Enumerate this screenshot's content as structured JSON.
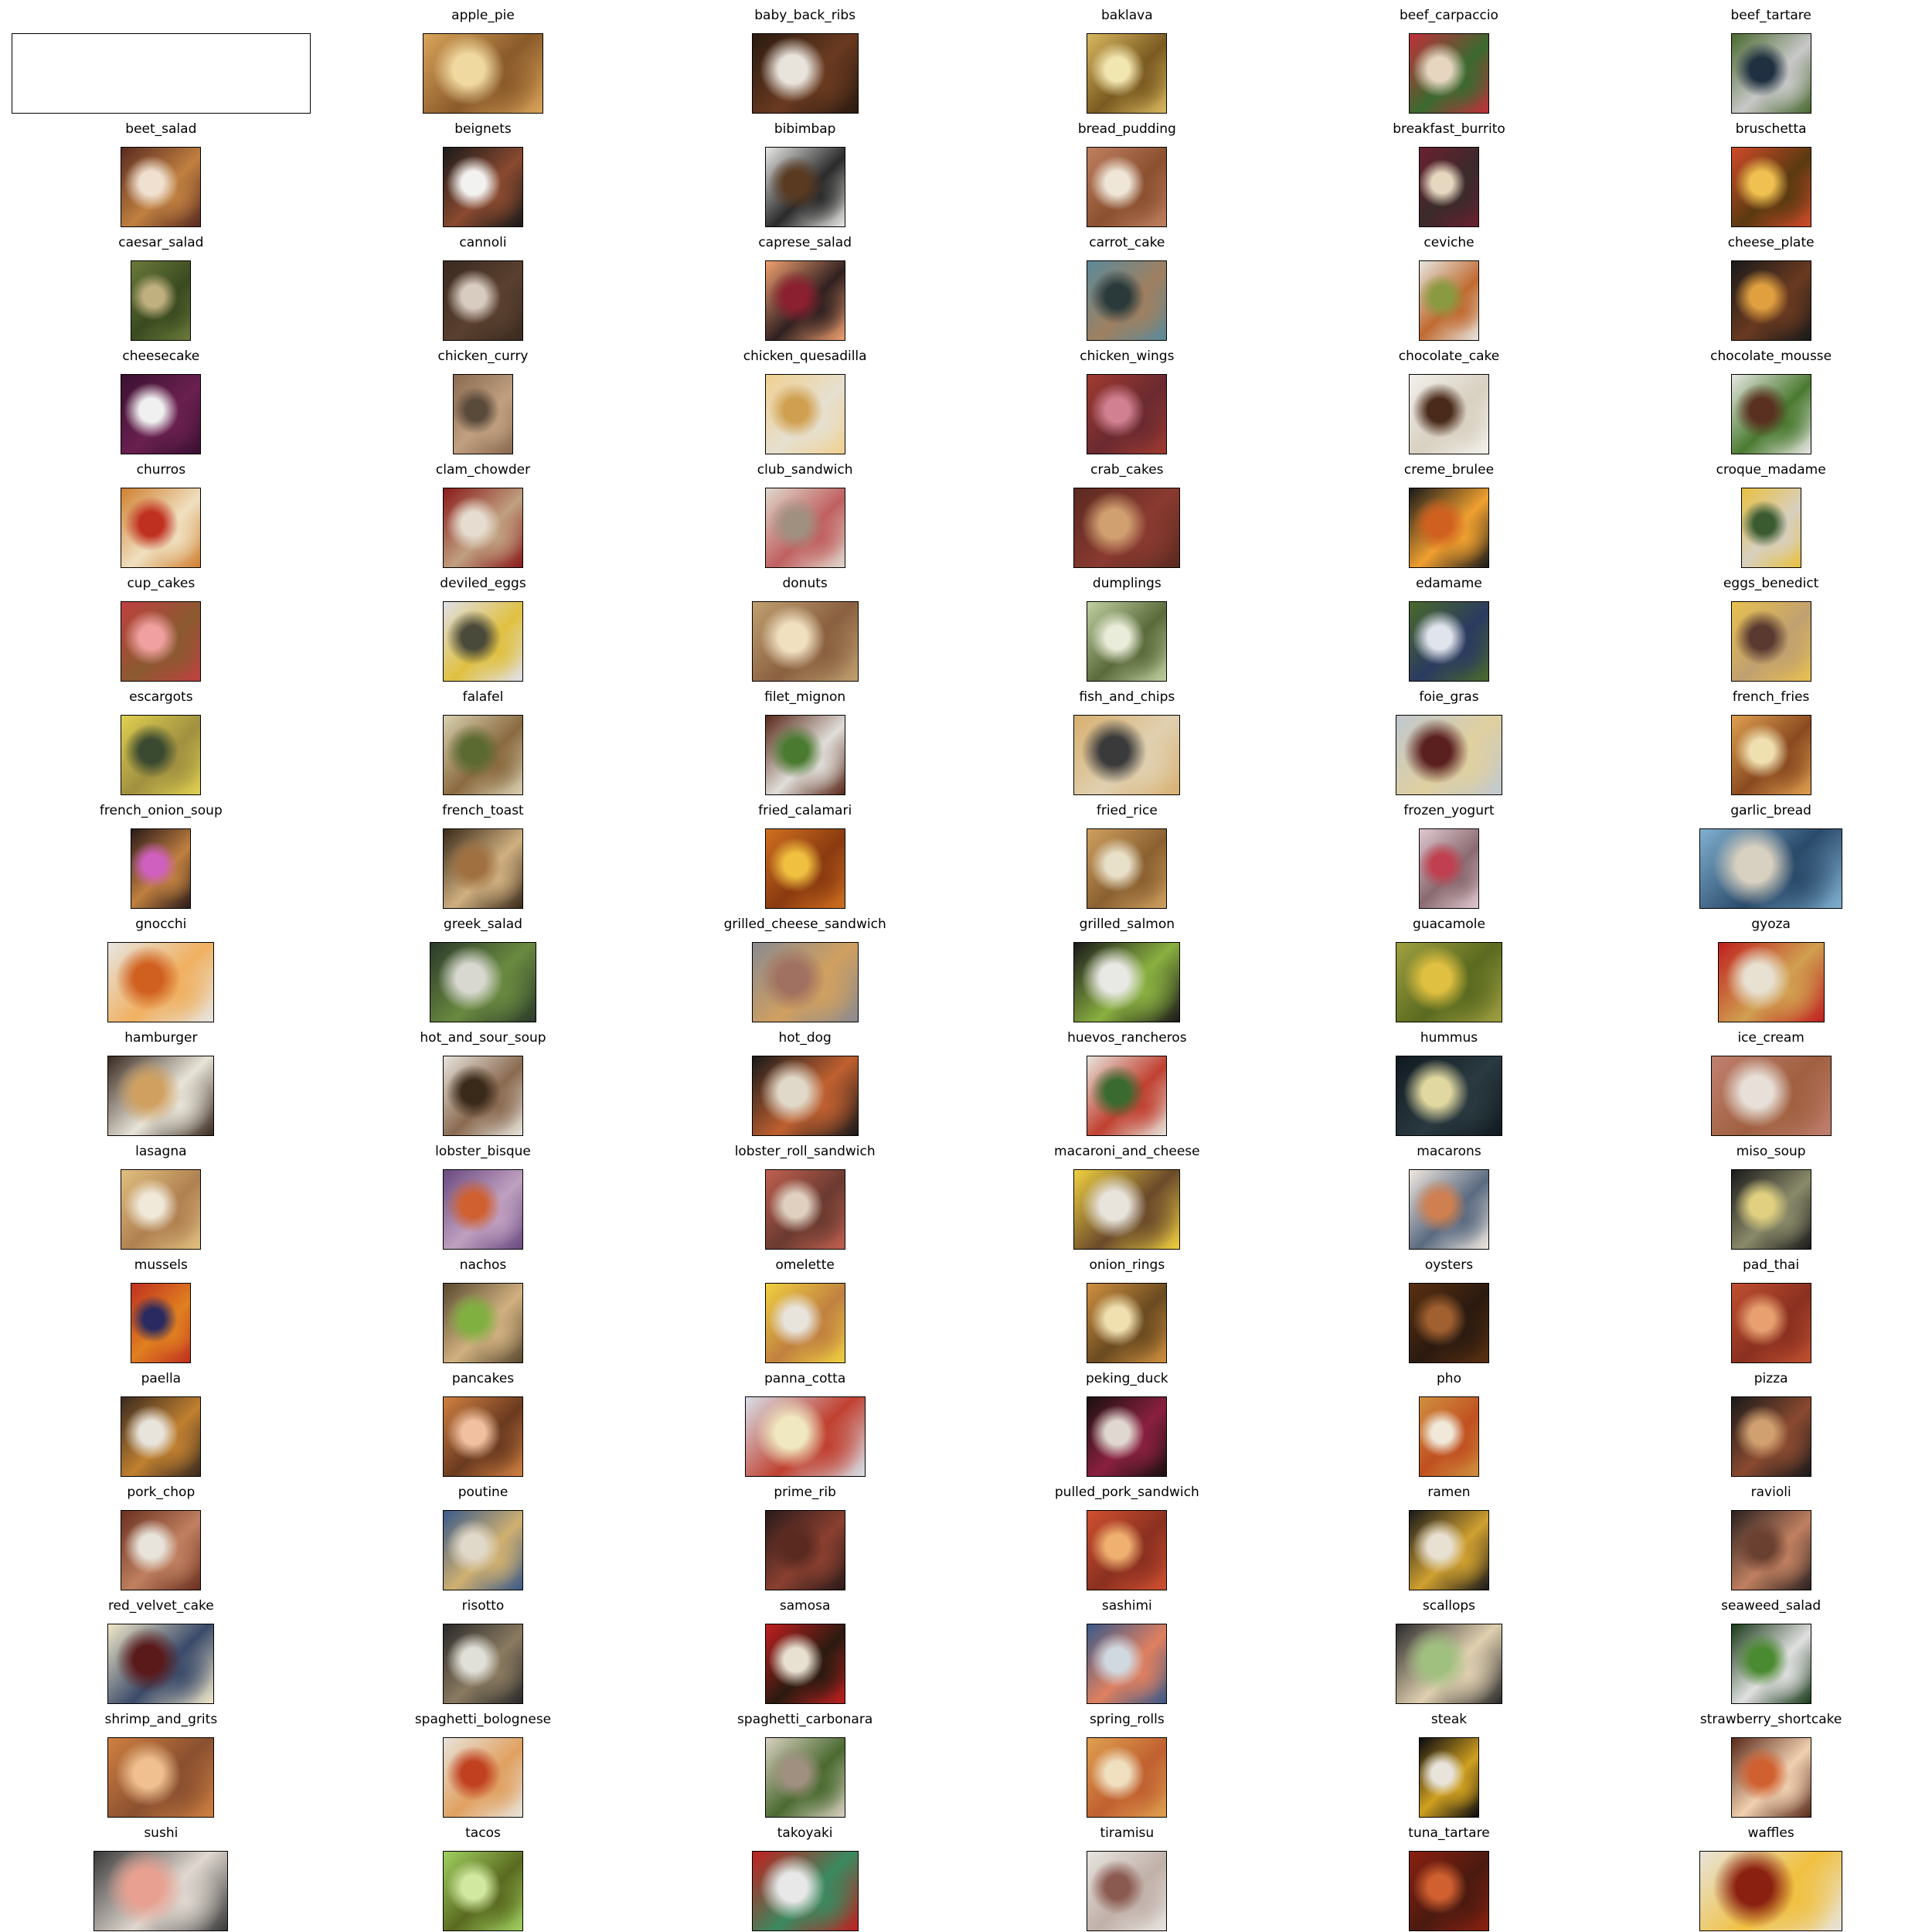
{
  "grid": {
    "columns": 6,
    "rows": 17,
    "items": [
      {
        "label": "",
        "thumb": "blank-white",
        "aspect": 4.4,
        "colors": [
          "#ffffff",
          "#ffffff",
          "#ffffff"
        ]
      },
      {
        "label": "apple_pie",
        "thumb": "food-photo",
        "aspect": 1.5,
        "colors": [
          "#d9a45a",
          "#f0d9a0",
          "#8a5a2a"
        ]
      },
      {
        "label": "baby_back_ribs",
        "thumb": "food-photo",
        "aspect": 1.33,
        "colors": [
          "#2a1a10",
          "#e8e4dc",
          "#6a3a20"
        ]
      },
      {
        "label": "baklava",
        "thumb": "food-photo",
        "aspect": 1.0,
        "colors": [
          "#d9b860",
          "#f2e6b0",
          "#7a5a20"
        ]
      },
      {
        "label": "beef_carpaccio",
        "thumb": "food-photo",
        "aspect": 1.0,
        "colors": [
          "#c0303a",
          "#e6d6c0",
          "#3a6a30"
        ]
      },
      {
        "label": "beef_tartare",
        "thumb": "food-photo",
        "aspect": 1.0,
        "colors": [
          "#4a6a30",
          "#203040",
          "#c8c8c8"
        ]
      },
      {
        "label": "beet_salad",
        "thumb": "food-photo",
        "aspect": 1.0,
        "colors": [
          "#5a2a20",
          "#f0e0d0",
          "#c08040"
        ]
      },
      {
        "label": "beignets",
        "thumb": "food-photo",
        "aspect": 1.0,
        "colors": [
          "#1a1a1a",
          "#f2f2f0",
          "#8a4a30"
        ]
      },
      {
        "label": "bibimbap",
        "thumb": "food-photo",
        "aspect": 1.0,
        "colors": [
          "#e8e8e6",
          "#5a3a20",
          "#2a2a2a"
        ]
      },
      {
        "label": "bread_pudding",
        "thumb": "food-photo",
        "aspect": 1.0,
        "colors": [
          "#c08060",
          "#f0e6d8",
          "#8a5030"
        ]
      },
      {
        "label": "breakfast_burrito",
        "thumb": "food-photo",
        "aspect": 0.75,
        "colors": [
          "#6a2030",
          "#e6d8c0",
          "#3a2a2a"
        ]
      },
      {
        "label": "bruschetta",
        "thumb": "food-photo",
        "aspect": 1.0,
        "colors": [
          "#d04a2a",
          "#f0c050",
          "#5a3a10"
        ]
      },
      {
        "label": "caesar_salad",
        "thumb": "food-photo",
        "aspect": 0.75,
        "colors": [
          "#6a7a3a",
          "#c0b080",
          "#3a4a20"
        ]
      },
      {
        "label": "cannoli",
        "thumb": "food-photo",
        "aspect": 1.0,
        "colors": [
          "#3a2a20",
          "#d8ccc0",
          "#5a4030"
        ]
      },
      {
        "label": "caprese_salad",
        "thumb": "food-photo",
        "aspect": 1.0,
        "colors": [
          "#f0a070",
          "#8a2030",
          "#302020"
        ]
      },
      {
        "label": "carrot_cake",
        "thumb": "food-photo",
        "aspect": 1.0,
        "colors": [
          "#5a8a9a",
          "#2a3a3a",
          "#a08060"
        ]
      },
      {
        "label": "ceviche",
        "thumb": "food-photo",
        "aspect": 0.75,
        "colors": [
          "#e6e6e0",
          "#8a9a40",
          "#c06a30"
        ]
      },
      {
        "label": "cheese_plate",
        "thumb": "food-photo",
        "aspect": 1.0,
        "colors": [
          "#1a1a1a",
          "#e0a040",
          "#6a3a20"
        ]
      },
      {
        "label": "cheesecake",
        "thumb": "food-photo",
        "aspect": 1.0,
        "colors": [
          "#3a1030",
          "#f0f0f0",
          "#6a2050"
        ]
      },
      {
        "label": "chicken_curry",
        "thumb": "food-photo",
        "aspect": 0.75,
        "colors": [
          "#8a6a50",
          "#5a4a3a",
          "#c0a080"
        ]
      },
      {
        "label": "chicken_quesadilla",
        "thumb": "food-photo",
        "aspect": 1.0,
        "colors": [
          "#f0d090",
          "#d0a050",
          "#e6e0d0"
        ]
      },
      {
        "label": "chicken_wings",
        "thumb": "food-photo",
        "aspect": 1.0,
        "colors": [
          "#a03a30",
          "#d08090",
          "#6a2a30"
        ]
      },
      {
        "label": "chocolate_cake",
        "thumb": "food-photo",
        "aspect": 1.0,
        "colors": [
          "#f2f0ec",
          "#4a2a1a",
          "#d8d0c0"
        ]
      },
      {
        "label": "chocolate_mousse",
        "thumb": "food-photo",
        "aspect": 1.0,
        "colors": [
          "#e8e8e4",
          "#5a3020",
          "#4a7a30"
        ]
      },
      {
        "label": "churros",
        "thumb": "food-photo",
        "aspect": 1.0,
        "colors": [
          "#d08030",
          "#c03020",
          "#f0e0c0"
        ]
      },
      {
        "label": "clam_chowder",
        "thumb": "food-photo",
        "aspect": 1.0,
        "colors": [
          "#8a1a1a",
          "#e6ddd0",
          "#c0a080"
        ]
      },
      {
        "label": "club_sandwich",
        "thumb": "food-photo",
        "aspect": 1.0,
        "colors": [
          "#e0d8cc",
          "#a09080",
          "#c06060"
        ]
      },
      {
        "label": "crab_cakes",
        "thumb": "food-photo",
        "aspect": 1.33,
        "colors": [
          "#5a2a20",
          "#d0a070",
          "#8a3a30"
        ]
      },
      {
        "label": "creme_brulee",
        "thumb": "food-photo",
        "aspect": 1.0,
        "colors": [
          "#1a1a1a",
          "#d06020",
          "#f0a030"
        ]
      },
      {
        "label": "croque_madame",
        "thumb": "food-photo",
        "aspect": 0.75,
        "colors": [
          "#e8c040",
          "#3a5a30",
          "#d8d0c0"
        ]
      },
      {
        "label": "cup_cakes",
        "thumb": "food-photo",
        "aspect": 1.0,
        "colors": [
          "#c04040",
          "#f0a0a0",
          "#8a5a30"
        ]
      },
      {
        "label": "deviled_eggs",
        "thumb": "food-photo",
        "aspect": 1.0,
        "colors": [
          "#e0e0e8",
          "#4a4a3a",
          "#e0c040"
        ]
      },
      {
        "label": "donuts",
        "thumb": "food-photo",
        "aspect": 1.33,
        "colors": [
          "#c0a070",
          "#f0e0c0",
          "#8a6040"
        ]
      },
      {
        "label": "dumplings",
        "thumb": "food-photo",
        "aspect": 1.0,
        "colors": [
          "#c0d0a0",
          "#e8ecd8",
          "#5a6a3a"
        ]
      },
      {
        "label": "edamame",
        "thumb": "food-photo",
        "aspect": 1.0,
        "colors": [
          "#4a6a2a",
          "#e0e4ec",
          "#2a3a60"
        ]
      },
      {
        "label": "eggs_benedict",
        "thumb": "food-photo",
        "aspect": 1.0,
        "colors": [
          "#e8c050",
          "#5a3a30",
          "#c0a070"
        ]
      },
      {
        "label": "escargots",
        "thumb": "food-photo",
        "aspect": 1.0,
        "colors": [
          "#e0d050",
          "#3a4a30",
          "#a09040"
        ]
      },
      {
        "label": "falafel",
        "thumb": "food-photo",
        "aspect": 1.0,
        "colors": [
          "#d8d0b0",
          "#5a6a30",
          "#8a6a40"
        ]
      },
      {
        "label": "filet_mignon",
        "thumb": "food-photo",
        "aspect": 1.0,
        "colors": [
          "#5a2a1a",
          "#4a7a30",
          "#e0ddd8"
        ]
      },
      {
        "label": "fish_and_chips",
        "thumb": "food-photo",
        "aspect": 1.33,
        "colors": [
          "#d8b070",
          "#3a3a3a",
          "#e0d0b0"
        ]
      },
      {
        "label": "foie_gras",
        "thumb": "food-photo",
        "aspect": 1.33,
        "colors": [
          "#c0c8d0",
          "#5a2020",
          "#e0d0a0"
        ]
      },
      {
        "label": "french_fries",
        "thumb": "food-photo",
        "aspect": 1.0,
        "colors": [
          "#e0a050",
          "#f0e0b0",
          "#8a4a20"
        ]
      },
      {
        "label": "french_onion_soup",
        "thumb": "food-photo",
        "aspect": 0.75,
        "colors": [
          "#2a1a1a",
          "#d060c0",
          "#c08040"
        ]
      },
      {
        "label": "french_toast",
        "thumb": "food-photo",
        "aspect": 1.0,
        "colors": [
          "#3a2a1a",
          "#a07040",
          "#d0b080"
        ]
      },
      {
        "label": "fried_calamari",
        "thumb": "food-photo",
        "aspect": 1.0,
        "colors": [
          "#d07020",
          "#f0c040",
          "#8a3a10"
        ]
      },
      {
        "label": "fried_rice",
        "thumb": "food-photo",
        "aspect": 1.0,
        "colors": [
          "#d0a060",
          "#e8e0c8",
          "#8a6030"
        ]
      },
      {
        "label": "frozen_yogurt",
        "thumb": "food-photo",
        "aspect": 0.75,
        "colors": [
          "#e0c8d0",
          "#c04050",
          "#8a6a70"
        ]
      },
      {
        "label": "garlic_bread",
        "thumb": "food-photo",
        "aspect": 1.78,
        "colors": [
          "#80b0d0",
          "#d8d0c0",
          "#2a4a6a"
        ]
      },
      {
        "label": "gnocchi",
        "thumb": "food-photo",
        "aspect": 1.33,
        "colors": [
          "#e6e6e2",
          "#d06020",
          "#f0b060"
        ]
      },
      {
        "label": "greek_salad",
        "thumb": "food-photo",
        "aspect": 1.33,
        "colors": [
          "#2a3a2a",
          "#d8d8d0",
          "#6a8a40"
        ]
      },
      {
        "label": "grilled_cheese_sandwich",
        "thumb": "food-photo",
        "aspect": 1.33,
        "colors": [
          "#8a8a90",
          "#a07060",
          "#d0a060"
        ]
      },
      {
        "label": "grilled_salmon",
        "thumb": "food-photo",
        "aspect": 1.33,
        "colors": [
          "#1a1a1a",
          "#e8e8e4",
          "#8ab040"
        ]
      },
      {
        "label": "guacamole",
        "thumb": "food-photo",
        "aspect": 1.33,
        "colors": [
          "#a0a040",
          "#e0c040",
          "#5a6a20"
        ]
      },
      {
        "label": "gyoza",
        "thumb": "food-photo",
        "aspect": 1.33,
        "colors": [
          "#c02020",
          "#e8e0d0",
          "#d0a050"
        ]
      },
      {
        "label": "hamburger",
        "thumb": "food-photo",
        "aspect": 1.33,
        "colors": [
          "#3a2a20",
          "#d0a060",
          "#e8e4d8"
        ]
      },
      {
        "label": "hot_and_sour_soup",
        "thumb": "food-photo",
        "aspect": 1.0,
        "colors": [
          "#e8e4dc",
          "#3a2a1a",
          "#8a6a50"
        ]
      },
      {
        "label": "hot_dog",
        "thumb": "food-photo",
        "aspect": 1.33,
        "colors": [
          "#1a1a1a",
          "#e0d8c8",
          "#c06030"
        ]
      },
      {
        "label": "huevos_rancheros",
        "thumb": "food-photo",
        "aspect": 1.0,
        "colors": [
          "#e8e4dc",
          "#3a6a30",
          "#c04030"
        ]
      },
      {
        "label": "hummus",
        "thumb": "food-photo",
        "aspect": 1.33,
        "colors": [
          "#101a20",
          "#e0d8a0",
          "#2a3a40"
        ]
      },
      {
        "label": "ice_cream",
        "thumb": "food-photo",
        "aspect": 1.5,
        "colors": [
          "#c08070",
          "#e8e0d8",
          "#a06040"
        ]
      },
      {
        "label": "lasagna",
        "thumb": "food-photo",
        "aspect": 1.0,
        "colors": [
          "#e0c080",
          "#f0e8d8",
          "#b08050"
        ]
      },
      {
        "label": "lobster_bisque",
        "thumb": "food-photo",
        "aspect": 1.0,
        "colors": [
          "#6a4a80",
          "#d06030",
          "#c0a0c0"
        ]
      },
      {
        "label": "lobster_roll_sandwich",
        "thumb": "food-photo",
        "aspect": 1.0,
        "colors": [
          "#c06050",
          "#e0d0c0",
          "#6a3a30"
        ]
      },
      {
        "label": "macaroni_and_cheese",
        "thumb": "food-photo",
        "aspect": 1.33,
        "colors": [
          "#f0d040",
          "#e8e4dc",
          "#6a4a2a"
        ]
      },
      {
        "label": "macarons",
        "thumb": "food-photo",
        "aspect": 1.0,
        "colors": [
          "#f0e8e0",
          "#d08050",
          "#5a6a80"
        ]
      },
      {
        "label": "miso_soup",
        "thumb": "food-photo",
        "aspect": 1.0,
        "colors": [
          "#1a1a1a",
          "#e0d080",
          "#8a8a6a"
        ]
      },
      {
        "label": "mussels",
        "thumb": "food-photo",
        "aspect": 0.75,
        "colors": [
          "#c03020",
          "#2a2a60",
          "#e08020"
        ]
      },
      {
        "label": "nachos",
        "thumb": "food-photo",
        "aspect": 1.0,
        "colors": [
          "#5a4a30",
          "#80b040",
          "#d0b080"
        ]
      },
      {
        "label": "omelette",
        "thumb": "food-photo",
        "aspect": 1.0,
        "colors": [
          "#f0d040",
          "#e8e4dc",
          "#c08040"
        ]
      },
      {
        "label": "onion_rings",
        "thumb": "food-photo",
        "aspect": 1.0,
        "colors": [
          "#d09040",
          "#f0e0b0",
          "#6a4a20"
        ]
      },
      {
        "label": "oysters",
        "thumb": "food-photo",
        "aspect": 1.0,
        "colors": [
          "#5a3010",
          "#a06030",
          "#2a1a10"
        ]
      },
      {
        "label": "pad_thai",
        "thumb": "food-photo",
        "aspect": 1.0,
        "colors": [
          "#c05030",
          "#e8a070",
          "#8a3020"
        ]
      },
      {
        "label": "paella",
        "thumb": "food-photo",
        "aspect": 1.0,
        "colors": [
          "#3a2a20",
          "#e8e4dc",
          "#c08030"
        ]
      },
      {
        "label": "pancakes",
        "thumb": "food-photo",
        "aspect": 1.0,
        "colors": [
          "#d08040",
          "#f0c0a0",
          "#6a3a20"
        ]
      },
      {
        "label": "panna_cotta",
        "thumb": "food-photo",
        "aspect": 1.5,
        "colors": [
          "#d8e0e8",
          "#f0e8c0",
          "#c04030"
        ]
      },
      {
        "label": "peking_duck",
        "thumb": "food-photo",
        "aspect": 1.0,
        "colors": [
          "#1a1010",
          "#e0d8d0",
          "#8a2040"
        ]
      },
      {
        "label": "pho",
        "thumb": "food-photo",
        "aspect": 0.75,
        "colors": [
          "#d09040",
          "#f0e8d8",
          "#c05020"
        ]
      },
      {
        "label": "pizza",
        "thumb": "food-photo",
        "aspect": 1.0,
        "colors": [
          "#1a1a1a",
          "#d0a070",
          "#8a4a30"
        ]
      },
      {
        "label": "pork_chop",
        "thumb": "food-photo",
        "aspect": 1.0,
        "colors": [
          "#6a3020",
          "#e8e4dc",
          "#c08060"
        ]
      },
      {
        "label": "poutine",
        "thumb": "food-photo",
        "aspect": 1.0,
        "colors": [
          "#3a5a8a",
          "#e0d8c8",
          "#d0b070"
        ]
      },
      {
        "label": "prime_rib",
        "thumb": "food-photo",
        "aspect": 1.0,
        "colors": [
          "#2a1a1a",
          "#5a2a20",
          "#8a4030"
        ]
      },
      {
        "label": "pulled_pork_sandwich",
        "thumb": "food-photo",
        "aspect": 1.0,
        "colors": [
          "#d05030",
          "#f0b070",
          "#8a3020"
        ]
      },
      {
        "label": "ramen",
        "thumb": "food-photo",
        "aspect": 1.0,
        "colors": [
          "#1a1a1a",
          "#e8e0d0",
          "#d0a030"
        ]
      },
      {
        "label": "ravioli",
        "thumb": "food-photo",
        "aspect": 1.0,
        "colors": [
          "#2a2020",
          "#6a4030",
          "#c08060"
        ]
      },
      {
        "label": "red_velvet_cake",
        "thumb": "food-photo",
        "aspect": 1.33,
        "colors": [
          "#f0e8c8",
          "#5a1a1a",
          "#3a4a6a"
        ]
      },
      {
        "label": "risotto",
        "thumb": "food-photo",
        "aspect": 1.0,
        "colors": [
          "#2a2a2a",
          "#e0e0d8",
          "#8a7a60"
        ]
      },
      {
        "label": "samosa",
        "thumb": "food-photo",
        "aspect": 1.0,
        "colors": [
          "#c02020",
          "#e8e0d0",
          "#2a1a10"
        ]
      },
      {
        "label": "sashimi",
        "thumb": "food-photo",
        "aspect": 1.0,
        "colors": [
          "#3a5a8a",
          "#d0d8e0",
          "#e08060"
        ]
      },
      {
        "label": "scallops",
        "thumb": "food-photo",
        "aspect": 1.33,
        "colors": [
          "#2a2a2a",
          "#a0c080",
          "#e0d0b0"
        ]
      },
      {
        "label": "seaweed_salad",
        "thumb": "food-photo",
        "aspect": 1.0,
        "colors": [
          "#1a3a1a",
          "#4a8a30",
          "#e0e0e0"
        ]
      },
      {
        "label": "shrimp_and_grits",
        "thumb": "food-photo",
        "aspect": 1.33,
        "colors": [
          "#d08040",
          "#f0c090",
          "#8a5030"
        ]
      },
      {
        "label": "spaghetti_bolognese",
        "thumb": "food-photo",
        "aspect": 1.0,
        "colors": [
          "#e8e4dc",
          "#c04020",
          "#e0a060"
        ]
      },
      {
        "label": "spaghetti_carbonara",
        "thumb": "food-photo",
        "aspect": 1.0,
        "colors": [
          "#d8d0c0",
          "#a09080",
          "#4a6a30"
        ]
      },
      {
        "label": "spring_rolls",
        "thumb": "food-photo",
        "aspect": 1.0,
        "colors": [
          "#e0a050",
          "#f0e0c0",
          "#c06030"
        ]
      },
      {
        "label": "steak",
        "thumb": "food-photo",
        "aspect": 0.75,
        "colors": [
          "#0a0a10",
          "#e8e4dc",
          "#d0a020"
        ]
      },
      {
        "label": "strawberry_shortcake",
        "thumb": "food-photo",
        "aspect": 1.0,
        "colors": [
          "#5a2a1a",
          "#d06030",
          "#f0d0b0"
        ]
      },
      {
        "label": "sushi",
        "thumb": "food-photo",
        "aspect": 1.67,
        "colors": [
          "#3a3a3a",
          "#e8a090",
          "#e0d8d0"
        ]
      },
      {
        "label": "tacos",
        "thumb": "food-photo",
        "aspect": 1.0,
        "colors": [
          "#a0d060",
          "#d0e8a0",
          "#5a6a20"
        ]
      },
      {
        "label": "takoyaki",
        "thumb": "food-photo",
        "aspect": 1.33,
        "colors": [
          "#c02020",
          "#e8e8e8",
          "#3a8a60"
        ]
      },
      {
        "label": "tiramisu",
        "thumb": "food-photo",
        "aspect": 1.0,
        "colors": [
          "#e8e4e0",
          "#8a5a50",
          "#c0b0a8"
        ]
      },
      {
        "label": "tuna_tartare",
        "thumb": "food-photo",
        "aspect": 1.0,
        "colors": [
          "#8a2010",
          "#d06030",
          "#4a1a10"
        ]
      },
      {
        "label": "waffles",
        "thumb": "food-photo",
        "aspect": 1.78,
        "colors": [
          "#e8e4dc",
          "#8a2010",
          "#f0c040"
        ]
      }
    ]
  }
}
